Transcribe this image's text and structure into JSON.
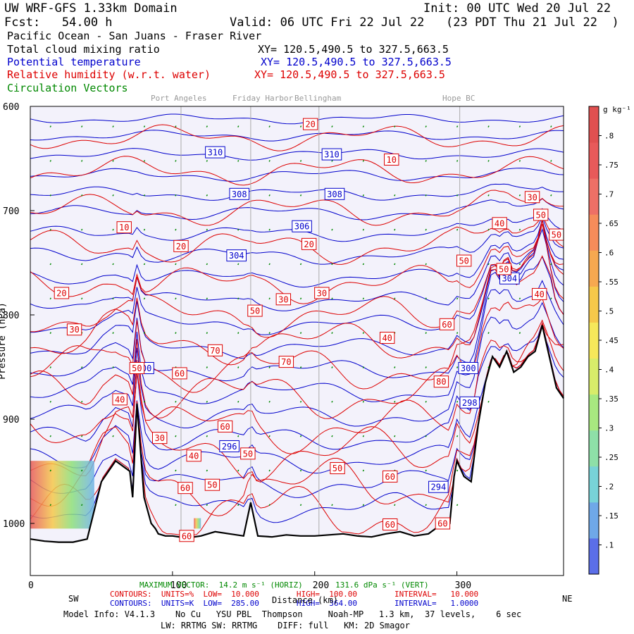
{
  "header": {
    "model": "UW WRF-GFS 1.33km Domain",
    "init": "Init: 00 UTC Wed 20 Jul 22",
    "fcst": "Fcst:   54.00 h",
    "valid": "Valid: 06 UTC Fri 22 Jul 22   (23 PDT Thu 21 Jul 22  )",
    "region": "Pacific Ocean - San Juans - Fraser River",
    "field1": "Total cloud mixing ratio",
    "field2": "Potential temperature",
    "field3": "Relative humidity (w.r.t. water)",
    "field4": "Circulation Vectors",
    "xy1": "XY= 120.5,490.5 to 327.5,663.5",
    "xy2": "XY= 120.5,490.5 to 327.5,663.5",
    "xy3": "XY= 120.5,490.5 to 327.5,663.5"
  },
  "places": [
    "Port Angeles",
    "Friday Harbor",
    "Bellingham",
    "Hope BC"
  ],
  "footer": {
    "max_vector": "MAXIMUM VECTOR:  14.2 m s⁻¹ (HORIZ)       131.6 dPa s⁻¹ (VERT)",
    "contours_rh": "CONTOURS:  UNITS=%  LOW=  10.000        HIGH=  100.00        INTERVAL=   10.000",
    "contours_k": "CONTOURS:  UNITS=K  LOW=  285.00        HIGH=  364.00        INTERVAL=   1.0000",
    "sw": "SW",
    "ne": "NE",
    "distance": "Distance (km)",
    "model_info": "Model Info: V4.1.3    No Cu   YSU PBL  Thompson     Noah-MP   1.3 km,  37 levels,    6 sec",
    "model_info2": "LW: RRTMG SW: RRTMG    DIFF: full   KM: 2D Smagor"
  },
  "colors": {
    "theta": "#0000cc",
    "rh": "#dd0000",
    "vectors": "#008800",
    "terrain": "#000000",
    "plot_bg": "#f3f2fb"
  },
  "chart_data": {
    "type": "cross-section contour",
    "title": "Total cloud mixing ratio / Potential temperature / Relative humidity",
    "xlabel": "Distance (km)",
    "ylabel": "Pressure (hPa)",
    "xlim": [
      0,
      375
    ],
    "ylim": [
      1050,
      600
    ],
    "x_ticks": [
      0,
      100,
      200,
      300
    ],
    "x_tick_labels": [
      "0",
      "100",
      "200",
      "300"
    ],
    "y_ticks": [
      600,
      700,
      800,
      900,
      1000
    ],
    "y_tick_labels": [
      "600",
      "700",
      "800",
      "900",
      "1000"
    ],
    "place_x_km": [
      106,
      155,
      203,
      302
    ],
    "terrain": {
      "x": [
        0,
        10,
        20,
        30,
        40,
        50,
        60,
        70,
        72,
        75,
        80,
        85,
        88,
        90,
        95,
        100,
        110,
        120,
        130,
        140,
        150,
        155,
        160,
        170,
        180,
        190,
        200,
        210,
        220,
        230,
        240,
        250,
        260,
        270,
        280,
        290,
        295,
        298,
        300,
        305,
        310,
        315,
        320,
        325,
        330,
        335,
        340,
        345,
        350,
        355,
        360,
        365,
        370,
        375
      ],
      "p": [
        1015,
        1017,
        1018,
        1018,
        1015,
        960,
        940,
        950,
        975,
        885,
        975,
        1000,
        1005,
        1010,
        1012,
        1012,
        1014,
        1012,
        1008,
        1010,
        1012,
        980,
        1012,
        1013,
        1011,
        1012,
        1012,
        1011,
        1010,
        1012,
        1013,
        1010,
        1008,
        1012,
        1010,
        1000,
        1000,
        955,
        940,
        955,
        960,
        905,
        865,
        840,
        850,
        835,
        855,
        850,
        840,
        835,
        810,
        840,
        870,
        880
      ]
    },
    "theta_contours": {
      "units": "K",
      "levels": [
        294,
        296,
        298,
        300,
        302,
        304,
        306,
        308,
        310,
        312
      ],
      "labeled": [
        {
          "value": 310,
          "x": 130,
          "p": 644
        },
        {
          "value": 310,
          "x": 212,
          "p": 646
        },
        {
          "value": 308,
          "x": 147,
          "p": 684
        },
        {
          "value": 308,
          "x": 214,
          "p": 684
        },
        {
          "value": 306,
          "x": 191,
          "p": 715
        },
        {
          "value": 304,
          "x": 145,
          "p": 743
        },
        {
          "value": 304,
          "x": 337,
          "p": 765
        },
        {
          "value": 300,
          "x": 80,
          "p": 851
        },
        {
          "value": 300,
          "x": 308,
          "p": 851
        },
        {
          "value": 298,
          "x": 309,
          "p": 884
        },
        {
          "value": 296,
          "x": 140,
          "p": 926
        },
        {
          "value": 294,
          "x": 287,
          "p": 965
        }
      ]
    },
    "rh_contours": {
      "units": "%",
      "levels": [
        10,
        20,
        30,
        40,
        50,
        60,
        70,
        80
      ],
      "labeled": [
        {
          "value": 20,
          "x": 197,
          "p": 617
        },
        {
          "value": 10,
          "x": 254,
          "p": 651
        },
        {
          "value": 10,
          "x": 66,
          "p": 716
        },
        {
          "value": 20,
          "x": 106,
          "p": 734
        },
        {
          "value": 20,
          "x": 196,
          "p": 732
        },
        {
          "value": 20,
          "x": 22,
          "p": 779
        },
        {
          "value": 30,
          "x": 178,
          "p": 785
        },
        {
          "value": 30,
          "x": 205,
          "p": 779
        },
        {
          "value": 30,
          "x": 31,
          "p": 814
        },
        {
          "value": 50,
          "x": 158,
          "p": 796
        },
        {
          "value": 40,
          "x": 251,
          "p": 822
        },
        {
          "value": 70,
          "x": 130,
          "p": 834
        },
        {
          "value": 70,
          "x": 180,
          "p": 845
        },
        {
          "value": 60,
          "x": 105,
          "p": 856
        },
        {
          "value": 50,
          "x": 75,
          "p": 851
        },
        {
          "value": 40,
          "x": 63,
          "p": 881
        },
        {
          "value": 30,
          "x": 91,
          "p": 918
        },
        {
          "value": 60,
          "x": 137,
          "p": 907
        },
        {
          "value": 80,
          "x": 289,
          "p": 864
        },
        {
          "value": 40,
          "x": 115,
          "p": 935
        },
        {
          "value": 50,
          "x": 153,
          "p": 933
        },
        {
          "value": 50,
          "x": 128,
          "p": 963
        },
        {
          "value": 60,
          "x": 109,
          "p": 966
        },
        {
          "value": 50,
          "x": 216,
          "p": 947
        },
        {
          "value": 60,
          "x": 253,
          "p": 955
        },
        {
          "value": 60,
          "x": 253,
          "p": 1001
        },
        {
          "value": 60,
          "x": 290,
          "p": 1000
        },
        {
          "value": 60,
          "x": 110,
          "p": 1012
        },
        {
          "value": 50,
          "x": 305,
          "p": 748
        },
        {
          "value": 50,
          "x": 333,
          "p": 756
        },
        {
          "value": 40,
          "x": 330,
          "p": 712
        },
        {
          "value": 30,
          "x": 353,
          "p": 687
        },
        {
          "value": 50,
          "x": 359,
          "p": 704
        },
        {
          "value": 50,
          "x": 370,
          "p": 723
        },
        {
          "value": 40,
          "x": 358,
          "p": 780
        },
        {
          "value": 60,
          "x": 293,
          "p": 809
        }
      ]
    },
    "cloud_mixing_ratio": {
      "units": "g kg⁻¹",
      "colorbar_ticks": [
        0.1,
        0.15,
        0.2,
        0.25,
        0.3,
        0.35,
        0.4,
        0.45,
        0.5,
        0.55,
        0.6,
        0.65,
        0.7,
        0.75,
        0.8
      ],
      "colorbar_tick_labels": [
        ".1",
        ".15",
        ".2",
        ".25",
        ".3",
        ".35",
        ".4",
        ".45",
        ".5",
        ".55",
        ".6",
        ".65",
        ".7",
        ".75",
        ".8"
      ],
      "colorbar_unit_label": "g kg⁻¹",
      "cloud_regions": [
        {
          "x_range": [
            0,
            45
          ],
          "p_range": [
            940,
            1005
          ],
          "max": 0.6
        },
        {
          "x_range": [
            115,
            120
          ],
          "p_range": [
            995,
            1005
          ],
          "max": 0.3
        }
      ]
    }
  }
}
